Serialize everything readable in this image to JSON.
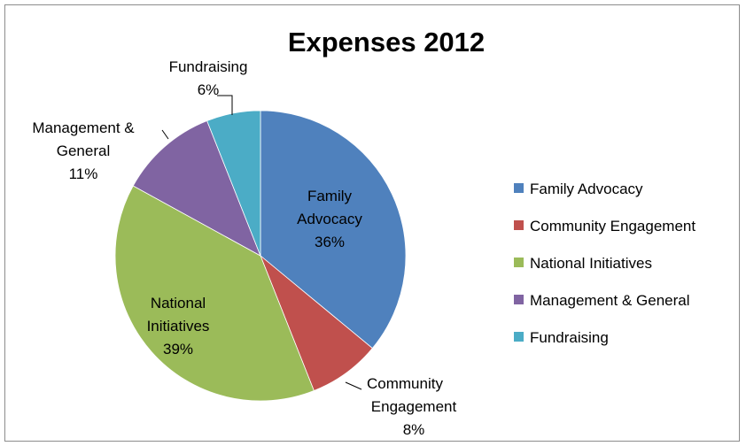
{
  "chart_data": {
    "type": "pie",
    "title": "Expenses 2012",
    "start_angle_deg": 0,
    "direction": "clockwise",
    "slices": [
      {
        "name": "Family Advocacy",
        "value": 36,
        "label_lines": [
          "Family",
          "Advocacy",
          "36%"
        ],
        "color": "#4f81bd"
      },
      {
        "name": "Community Engagement",
        "value": 8,
        "label_lines": [
          "Community",
          "Engagement",
          "8%"
        ],
        "color": "#c0504d"
      },
      {
        "name": "National Initiatives",
        "value": 39,
        "label_lines": [
          "National",
          "Initiatives",
          "39%"
        ],
        "color": "#9bbb59"
      },
      {
        "name": "Management & General",
        "value": 11,
        "label_lines": [
          "Management &",
          "General",
          "11%"
        ],
        "color": "#8064a2"
      },
      {
        "name": "Fundraising",
        "value": 6,
        "label_lines": [
          "Fundraising",
          "6%"
        ],
        "color": "#4bacc6"
      }
    ],
    "legend": {
      "position": "right",
      "entries": [
        "Family Advocacy",
        "Community Engagement",
        "National Initiatives",
        "Management & General",
        "Fundraising"
      ]
    }
  }
}
